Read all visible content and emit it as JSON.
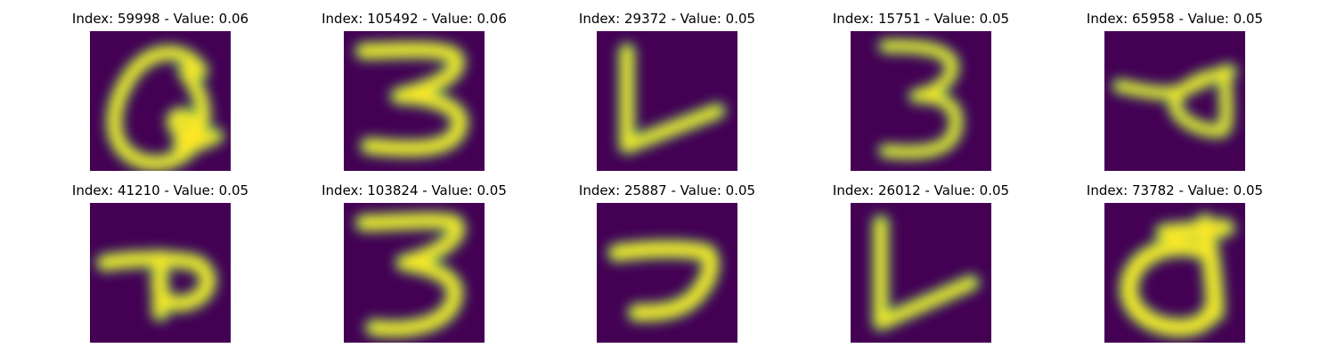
{
  "colors": {
    "background": "#440154",
    "stroke": "#fde725",
    "edge": "#35b779"
  },
  "panels": [
    {
      "title": "Index: 59998 - Value: 0.06"
    },
    {
      "title": "Index: 105492 - Value: 0.06"
    },
    {
      "title": "Index: 29372 - Value: 0.05"
    },
    {
      "title": "Index: 15751 - Value: 0.05"
    },
    {
      "title": "Index: 65958 - Value: 0.05"
    },
    {
      "title": "Index: 41210 - Value: 0.05"
    },
    {
      "title": "Index: 103824 - Value: 0.05"
    },
    {
      "title": "Index: 25887 - Value: 0.05"
    },
    {
      "title": "Index: 26012 - Value: 0.05"
    },
    {
      "title": "Index: 73782 - Value: 0.05"
    }
  ]
}
